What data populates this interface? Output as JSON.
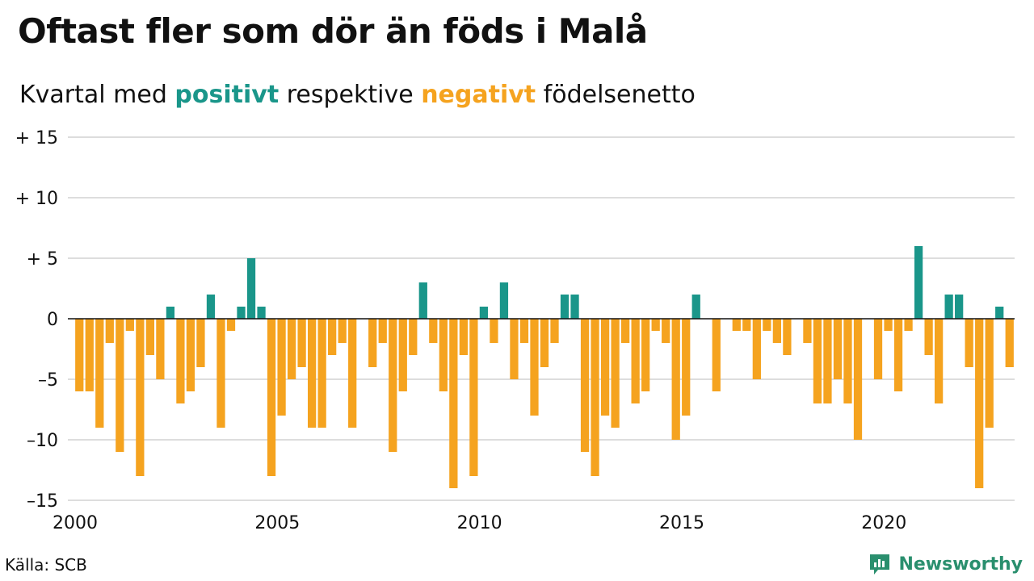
{
  "title": "Oftast fler som dör än föds i Malå",
  "subtitle": {
    "prefix": "Kvartal med ",
    "positive_word": "positivt",
    "middle": " respektive ",
    "negative_word": "negativt",
    "suffix": " födelsenetto"
  },
  "source": "Källa: SCB",
  "brand": "Newsworthy",
  "colors": {
    "positive": "#1a968a",
    "negative": "#f5a31f",
    "brand": "#2a8f6e",
    "grid": "#dddddd",
    "baseline": "#111111"
  },
  "chart_data": {
    "type": "bar",
    "x_start": 2000,
    "periods_per_year": 4,
    "values": [
      -6,
      -6,
      -9,
      -2,
      -11,
      -1,
      -13,
      -3,
      -5,
      1,
      -7,
      -6,
      -4,
      2,
      -9,
      -1,
      1,
      5,
      1,
      -13,
      -8,
      -5,
      -4,
      -9,
      -9,
      -3,
      -2,
      -9,
      0,
      -4,
      -2,
      -11,
      -6,
      -3,
      3,
      -2,
      -6,
      -14,
      -3,
      -13,
      1,
      -2,
      3,
      -5,
      -2,
      -8,
      -4,
      -2,
      2,
      2,
      -11,
      -13,
      -8,
      -9,
      -2,
      -7,
      -6,
      -1,
      -2,
      -10,
      -8,
      2,
      0,
      -6,
      0,
      -1,
      -1,
      -5,
      -1,
      -2,
      -3,
      0,
      -2,
      -7,
      -7,
      -5,
      -7,
      -10,
      0,
      -5,
      -1,
      -6,
      -1,
      6,
      -3,
      -7,
      2,
      2,
      -4,
      -14,
      -9,
      1,
      -4
    ],
    "y_ticks": [
      {
        "value": 15,
        "label": "+ 15"
      },
      {
        "value": 10,
        "label": "+ 10"
      },
      {
        "value": 5,
        "label": "+  5"
      },
      {
        "value": 0,
        "label": "0"
      },
      {
        "value": -5,
        "label": "–5"
      },
      {
        "value": -10,
        "label": "–10"
      },
      {
        "value": -15,
        "label": "–15"
      }
    ],
    "x_ticks": [
      {
        "value": 2000,
        "label": "2000"
      },
      {
        "value": 2005,
        "label": "2005"
      },
      {
        "value": 2010,
        "label": "2010"
      },
      {
        "value": 2015,
        "label": "2015"
      },
      {
        "value": 2020,
        "label": "2020"
      }
    ],
    "ylim": [
      -15,
      15
    ],
    "xlim": [
      2000,
      2023.25
    ],
    "grid": true
  }
}
